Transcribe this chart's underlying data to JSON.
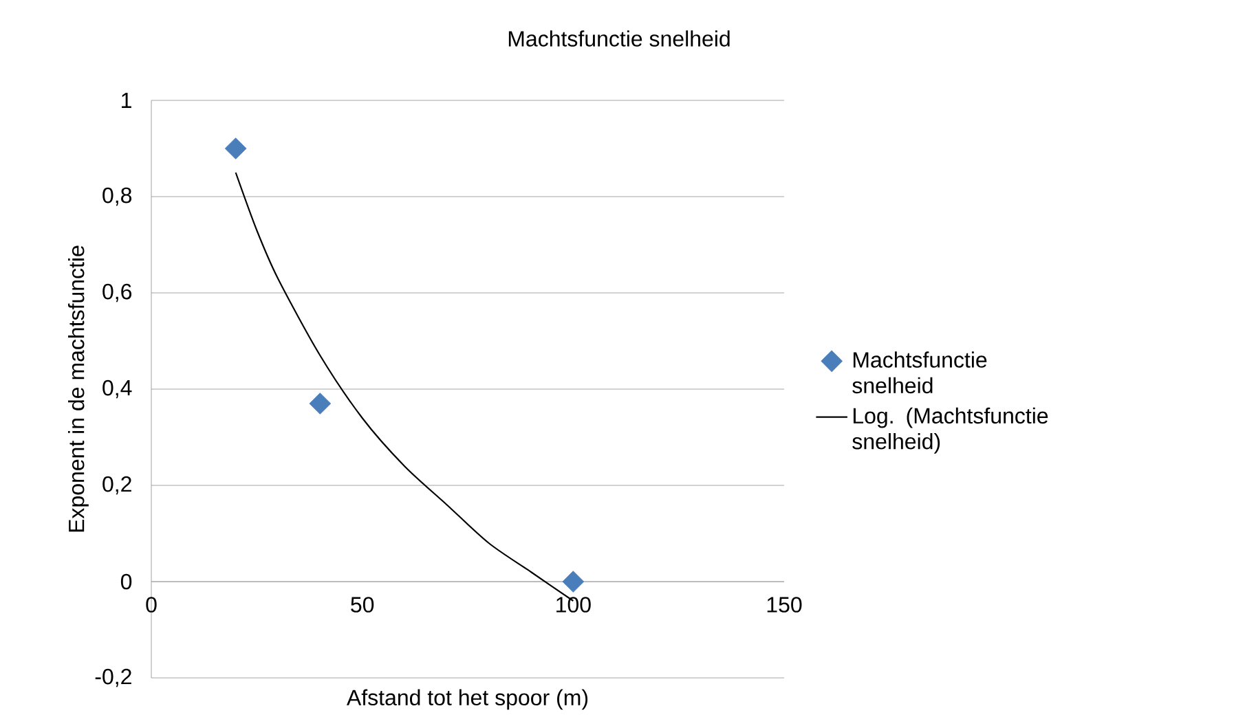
{
  "chart_data": {
    "type": "scatter",
    "title": "Machtsfunctie snelheid",
    "xlabel": "Afstand tot het spoor (m)",
    "ylabel": "Exponent in de machtsfunctie",
    "xlim": [
      0,
      150
    ],
    "xticks": [
      0,
      50,
      100,
      150
    ],
    "ylim": [
      -0.2,
      1
    ],
    "yticks": [
      {
        "value": -0.2,
        "label": "-0,2"
      },
      0,
      {
        "value": 0.2,
        "label": "0,2"
      },
      {
        "value": 0.4,
        "label": "0,4"
      },
      {
        "value": 0.6,
        "label": "0,6"
      },
      {
        "value": 0.8,
        "label": "0,8"
      },
      1
    ],
    "grid": "y",
    "legend": "right",
    "marker": "diamond",
    "series": [
      {
        "name": "Machtsfunctie snelheid",
        "color": "#4a7ebb",
        "x": [
          20,
          40,
          100
        ],
        "values": [
          0.9,
          0.37,
          0.0
        ]
      },
      {
        "name": "Log. (Machtsfunctie snelheid)",
        "type": "line",
        "marker": "none",
        "color": "#000000",
        "x": [
          20,
          25,
          30,
          40,
          50,
          60,
          70,
          80,
          90,
          100
        ],
        "values": [
          0.85,
          0.73,
          0.63,
          0.47,
          0.34,
          0.24,
          0.16,
          0.08,
          0.02,
          -0.04
        ]
      }
    ]
  }
}
